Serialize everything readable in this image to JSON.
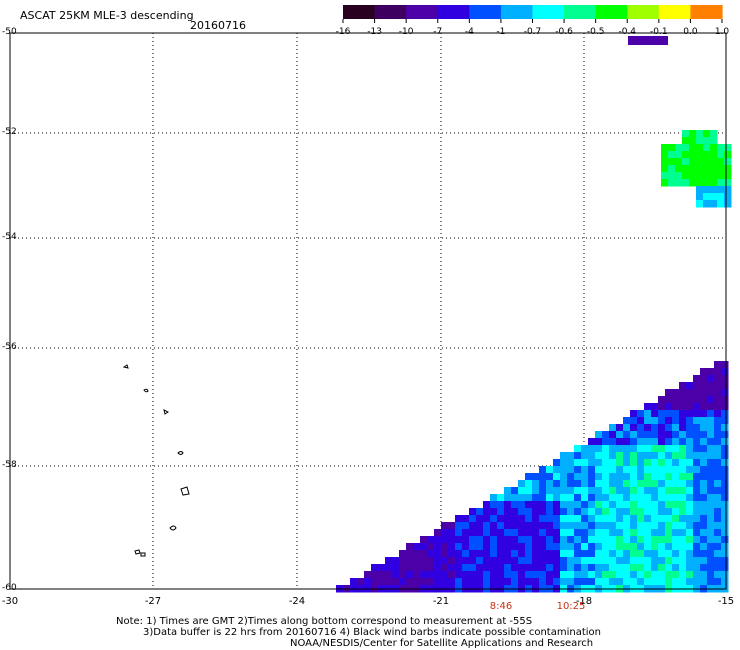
{
  "header": {
    "title": "ASCAT 25KM MLE-3 descending",
    "date": "20160716"
  },
  "colorbar": {
    "labels": [
      "-16",
      "-13",
      "-10",
      "-7",
      "-4",
      "-1",
      "-0.7",
      "-0.6",
      "-0.5",
      "-0.4",
      "-0.1",
      "0.0",
      "1.0"
    ],
    "colors": [
      "#2a0020",
      "#3d0060",
      "#4b00a8",
      "#3000e0",
      "#0050ff",
      "#00b0ff",
      "#00ffff",
      "#00ff90",
      "#00ff00",
      "#a0ff00",
      "#ffff00",
      "#ff8000",
      "#ff2000"
    ]
  },
  "map": {
    "lat_labels": [
      "-50",
      "-52",
      "-54",
      "-56",
      "-58",
      "-60"
    ],
    "lon_labels": [
      "-30",
      "-27",
      "-24",
      "-21",
      "-18",
      "-15"
    ],
    "time_labels": [
      "8:46",
      "10:25"
    ]
  },
  "notes": {
    "line1": "Note: 1) Times are GMT 2)Times along bottom correspond to measurement at -55S",
    "line2": "3)Data buffer is 22 hrs from 20160716 4) Black wind barbs indicate possible contamination",
    "line3": "NOAA/NESDIS/Center for Satellite Applications and Research"
  },
  "colors": {
    "time_label": "#c83214"
  }
}
